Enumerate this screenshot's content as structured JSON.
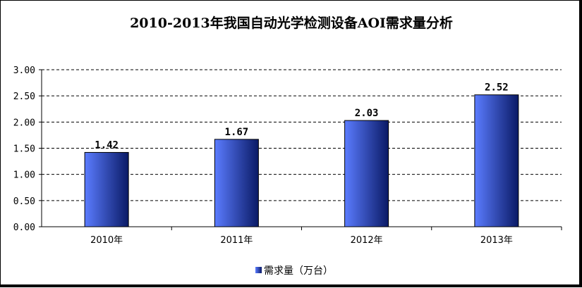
{
  "chart_data": {
    "type": "bar",
    "title": "2010-2013年我国自动光学检测设备AOI需求量分析",
    "categories": [
      "2010年",
      "2011年",
      "2012年",
      "2013年"
    ],
    "series": [
      {
        "name": "需求量（万台）",
        "values": [
          1.42,
          1.67,
          2.03,
          2.52
        ]
      }
    ],
    "data_labels": [
      "1.42",
      "1.67",
      "2.03",
      "2.52"
    ],
    "yticks": [
      "0.00",
      "0.50",
      "1.00",
      "1.50",
      "2.00",
      "2.50",
      "3.00"
    ],
    "ylim": [
      0,
      3
    ],
    "xlabel": "",
    "ylabel": "",
    "grid": "horizontal-dashed",
    "legend_position": "bottom",
    "colors": {
      "bar_light": "#5b7cff",
      "bar_dark": "#0a1a66",
      "grid": "#000000"
    }
  }
}
